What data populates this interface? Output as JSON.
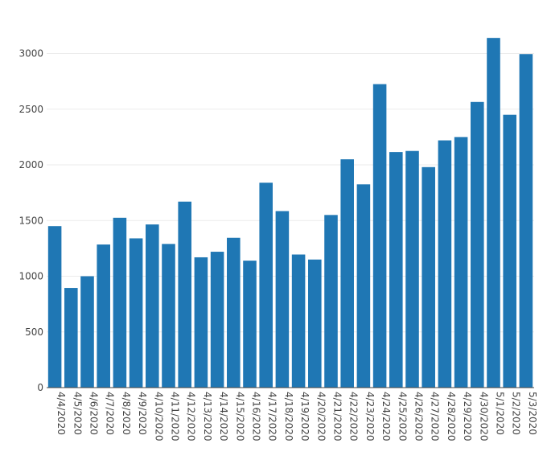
{
  "chart_data": {
    "type": "bar",
    "title": "",
    "xlabel": "",
    "ylabel": "",
    "ylim": [
      0,
      3300
    ],
    "yticks": [
      0,
      500,
      1000,
      1500,
      2000,
      2500,
      3000
    ],
    "grid": true,
    "legend": "none",
    "bar_color": "#1f77b4",
    "categories": [
      "4/4/2020",
      "4/5/2020",
      "4/6/2020",
      "4/7/2020",
      "4/8/2020",
      "4/9/2020",
      "4/10/2020",
      "4/11/2020",
      "4/12/2020",
      "4/13/2020",
      "4/14/2020",
      "4/15/2020",
      "4/16/2020",
      "4/17/2020",
      "4/18/2020",
      "4/19/2020",
      "4/20/2020",
      "4/21/2020",
      "4/22/2020",
      "4/23/2020",
      "4/24/2020",
      "4/25/2020",
      "4/26/2020",
      "4/27/2020",
      "4/28/2020",
      "4/29/2020",
      "4/30/2020",
      "5/1/2020",
      "5/2/2020",
      "5/3/2020"
    ],
    "values": [
      1450,
      895,
      1000,
      1285,
      1525,
      1340,
      1465,
      1290,
      1670,
      1170,
      1220,
      1345,
      1140,
      1840,
      1585,
      1195,
      1150,
      1550,
      2050,
      1825,
      2725,
      2115,
      2125,
      1980,
      2220,
      2250,
      2565,
      3140,
      2450,
      2995
    ]
  }
}
